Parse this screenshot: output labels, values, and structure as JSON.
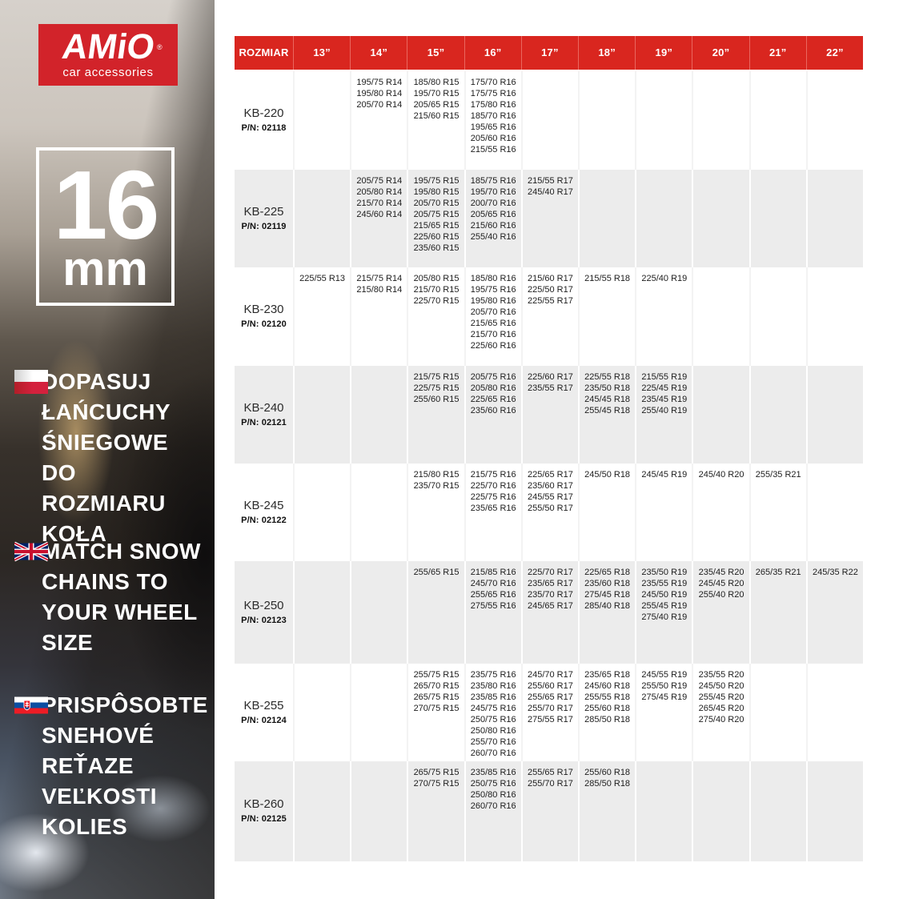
{
  "colors": {
    "accent_red": "#d9261f",
    "logo_red": "#d2232a",
    "row_alt_gray": "#ececec"
  },
  "sidebar": {
    "logo": {
      "brand": "AMiO",
      "registered": "®",
      "tagline": "car accessories"
    },
    "badge": {
      "value": "16",
      "unit": "mm"
    },
    "sections": [
      {
        "lang": "pl",
        "flag_icon": "poland-flag-icon",
        "text": "DOPASUJ\nŁAŃCUCHY\nŚNIEGOWE\nDO ROZMIARU\nKOŁA"
      },
      {
        "lang": "en",
        "flag_icon": "uk-flag-icon",
        "text": "MATCH SNOW\nCHAINS TO\nYOUR WHEEL\nSIZE"
      },
      {
        "lang": "sk",
        "flag_icon": "slovakia-flag-icon",
        "text": "PRISPÔSOBTE\nSNEHOVÉ\nREŤAZE\nVEĽKOSTI\nKOLIES"
      }
    ]
  },
  "table": {
    "header": [
      "ROZMIAR",
      "13”",
      "14”",
      "15”",
      "16”",
      "17”",
      "18”",
      "19”",
      "20”",
      "21”",
      "22”"
    ],
    "pn_prefix": "P/N:",
    "rows": [
      {
        "model": "KB-220",
        "pn": "02118",
        "sizes": [
          [],
          [
            "195/75 R14",
            "195/80 R14",
            "205/70 R14"
          ],
          [
            "185/80 R15",
            "195/70 R15",
            "205/65 R15",
            "215/60 R15"
          ],
          [
            "175/70 R16",
            "175/75 R16",
            "175/80 R16",
            "185/70 R16",
            "195/65 R16",
            "205/60 R16",
            "215/55 R16"
          ],
          [],
          [],
          [],
          [],
          [],
          []
        ]
      },
      {
        "model": "KB-225",
        "pn": "02119",
        "sizes": [
          [],
          [
            "205/75 R14",
            "205/80 R14",
            "215/70 R14",
            "245/60 R14"
          ],
          [
            "195/75 R15",
            "195/80 R15",
            "205/70 R15",
            "205/75 R15",
            "215/65 R15",
            "225/60 R15",
            "235/60 R15"
          ],
          [
            "185/75 R16",
            "195/70 R16",
            "200/70 R16",
            "205/65 R16",
            "215/60 R16",
            "255/40 R16"
          ],
          [
            "215/55 R17",
            "245/40 R17"
          ],
          [],
          [],
          [],
          [],
          []
        ]
      },
      {
        "model": "KB-230",
        "pn": "02120",
        "sizes": [
          [
            "225/55 R13"
          ],
          [
            "215/75 R14",
            "215/80 R14"
          ],
          [
            "205/80 R15",
            "215/70 R15",
            "225/70 R15"
          ],
          [
            "185/80 R16",
            "195/75 R16",
            "195/80 R16",
            "205/70 R16",
            "215/65 R16",
            "215/70 R16",
            "225/60 R16"
          ],
          [
            "215/60 R17",
            "225/50 R17",
            "225/55 R17"
          ],
          [
            "215/55 R18"
          ],
          [
            "225/40 R19"
          ],
          [],
          [],
          []
        ]
      },
      {
        "model": "KB-240",
        "pn": "02121",
        "sizes": [
          [],
          [],
          [
            "215/75 R15",
            "225/75 R15",
            "255/60 R15"
          ],
          [
            "205/75 R16",
            "205/80 R16",
            "225/65 R16",
            "235/60 R16"
          ],
          [
            "225/60 R17",
            "235/55 R17"
          ],
          [
            "225/55 R18",
            "235/50 R18",
            "245/45 R18",
            "255/45 R18"
          ],
          [
            "215/55 R19",
            "225/45 R19",
            "235/45 R19",
            "255/40 R19"
          ],
          [],
          [],
          []
        ]
      },
      {
        "model": "KB-245",
        "pn": "02122",
        "sizes": [
          [],
          [],
          [
            "215/80 R15",
            "235/70 R15"
          ],
          [
            "215/75 R16",
            "225/70 R16",
            "225/75 R16",
            "235/65 R16"
          ],
          [
            "225/65 R17",
            "235/60 R17",
            "245/55 R17",
            "255/50 R17"
          ],
          [
            "245/50 R18"
          ],
          [
            "245/45 R19"
          ],
          [
            "245/40 R20"
          ],
          [
            "255/35 R21"
          ],
          []
        ]
      },
      {
        "model": "KB-250",
        "pn": "02123",
        "sizes": [
          [],
          [],
          [
            "255/65 R15"
          ],
          [
            "215/85 R16",
            "245/70 R16",
            "255/65 R16",
            "275/55 R16"
          ],
          [
            "225/70 R17",
            "235/65 R17",
            "235/70 R17",
            "245/65 R17"
          ],
          [
            "225/65 R18",
            "235/60 R18",
            "275/45 R18",
            "285/40 R18"
          ],
          [
            "235/50 R19",
            "235/55 R19",
            "245/50 R19",
            "255/45 R19",
            "275/40 R19"
          ],
          [
            "235/45 R20",
            "245/45 R20",
            "255/40 R20"
          ],
          [
            "265/35 R21"
          ],
          [
            "245/35 R22"
          ]
        ]
      },
      {
        "model": "KB-255",
        "pn": "02124",
        "sizes": [
          [],
          [],
          [
            "255/75 R15",
            "265/70 R15",
            "265/75 R15",
            "270/75 R15"
          ],
          [
            "235/75 R16",
            "235/80 R16",
            "235/85 R16",
            "245/75 R16",
            "250/75 R16",
            "250/80 R16",
            "255/70 R16",
            "260/70 R16"
          ],
          [
            "245/70 R17",
            "255/60 R17",
            "255/65 R17",
            "255/70 R17",
            "275/55 R17"
          ],
          [
            "235/65 R18",
            "245/60 R18",
            "255/55 R18",
            "255/60 R18",
            "285/50 R18"
          ],
          [
            "245/55 R19",
            "255/50 R19",
            "275/45 R19"
          ],
          [
            "235/55 R20",
            "245/50 R20",
            "255/45 R20",
            "265/45 R20",
            "275/40 R20"
          ],
          [],
          []
        ]
      },
      {
        "model": "KB-260",
        "pn": "02125",
        "sizes": [
          [],
          [],
          [
            "265/75 R15",
            "270/75 R15"
          ],
          [
            "235/85 R16",
            "250/75 R16",
            "250/80 R16",
            "260/70 R16"
          ],
          [
            "255/65 R17",
            "255/70 R17"
          ],
          [
            "255/60 R18",
            "285/50 R18"
          ],
          [],
          [],
          [],
          []
        ]
      }
    ]
  }
}
